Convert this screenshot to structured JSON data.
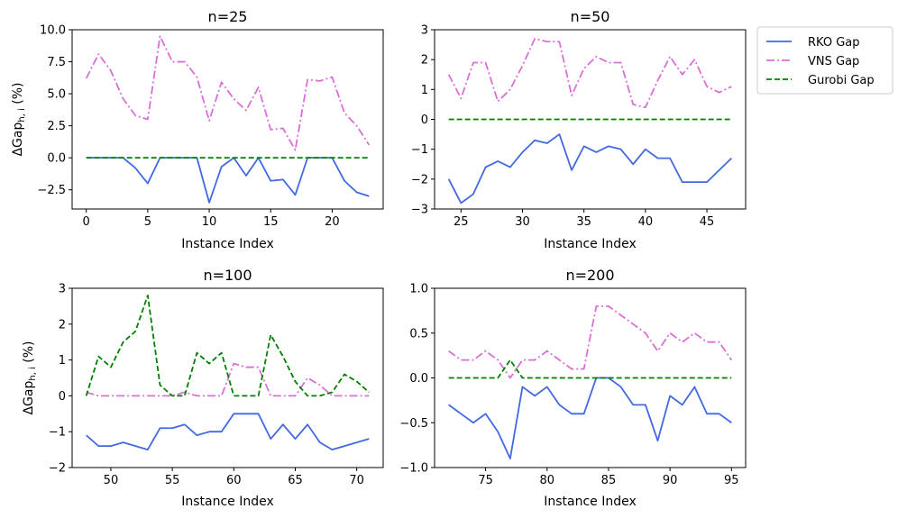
{
  "chart_data": [
    {
      "type": "line",
      "title": "n=25",
      "xlabel": "Instance Index",
      "ylabel": "ΔGap",
      "ylabel_sub": "h, i",
      "ylabel_suffix": " (%)",
      "xlim": [
        -1.15,
        24.15
      ],
      "ylim": [
        -4.0,
        10.0
      ],
      "xticks": [
        0,
        5,
        10,
        15,
        20
      ],
      "yticks": [
        -2.5,
        0.0,
        2.5,
        5.0,
        7.5,
        10.0
      ],
      "ytick_labels": [
        "−2.5",
        "0.0",
        "2.5",
        "5.0",
        "7.5",
        "10.0"
      ],
      "x": [
        0,
        1,
        2,
        3,
        4,
        5,
        6,
        7,
        8,
        9,
        10,
        11,
        12,
        13,
        14,
        15,
        16,
        17,
        18,
        19,
        20,
        21,
        22,
        23
      ],
      "series": [
        {
          "name": "RKO Gap",
          "values": [
            0,
            0,
            0,
            0,
            -0.8,
            -2.0,
            0,
            0,
            0,
            0,
            -3.5,
            -0.7,
            0,
            -1.4,
            0,
            -1.8,
            -1.7,
            -2.9,
            0,
            0,
            0,
            -1.8,
            -2.7,
            -3.0
          ]
        },
        {
          "name": "VNS Gap",
          "values": [
            6.2,
            8.1,
            6.8,
            4.6,
            3.3,
            3.0,
            9.5,
            7.5,
            7.5,
            6.3,
            2.9,
            5.9,
            4.6,
            3.7,
            5.5,
            2.2,
            2.3,
            0.6,
            6.1,
            6.0,
            6.3,
            3.5,
            2.5,
            1.0
          ]
        },
        {
          "name": "Gurobi Gap",
          "values": [
            0,
            0,
            0,
            0,
            0,
            0,
            0,
            0,
            0,
            0,
            0,
            0,
            0,
            0,
            0,
            0,
            0,
            0,
            0,
            0,
            0,
            0,
            0,
            0
          ]
        }
      ]
    },
    {
      "type": "line",
      "title": "n=50",
      "xlabel": "Instance Index",
      "ylabel": "",
      "xlim": [
        22.85,
        48.15
      ],
      "ylim": [
        -3.0,
        3.0
      ],
      "xticks": [
        25,
        30,
        35,
        40,
        45
      ],
      "yticks": [
        -3,
        -2,
        -1,
        0,
        1,
        2,
        3
      ],
      "ytick_labels": [
        "−3",
        "−2",
        "−1",
        "0",
        "1",
        "2",
        "3"
      ],
      "x": [
        24,
        25,
        26,
        27,
        28,
        29,
        30,
        31,
        32,
        33,
        34,
        35,
        36,
        37,
        38,
        39,
        40,
        41,
        42,
        43,
        44,
        45,
        46,
        47
      ],
      "series": [
        {
          "name": "RKO Gap",
          "values": [
            -2.0,
            -2.8,
            -2.5,
            -1.6,
            -1.4,
            -1.6,
            -1.1,
            -0.7,
            -0.8,
            -0.5,
            -1.7,
            -0.9,
            -1.1,
            -0.9,
            -1.0,
            -1.5,
            -1.0,
            -1.3,
            -1.3,
            -2.1,
            -2.1,
            -2.1,
            -1.7,
            -1.3
          ]
        },
        {
          "name": "VNS Gap",
          "values": [
            1.5,
            0.7,
            1.9,
            1.9,
            0.6,
            1.0,
            1.8,
            2.7,
            2.6,
            2.6,
            0.8,
            1.7,
            2.1,
            1.9,
            1.9,
            0.5,
            0.4,
            1.3,
            2.1,
            1.5,
            2.0,
            1.1,
            0.9,
            1.1
          ]
        },
        {
          "name": "Gurobi Gap",
          "values": [
            0,
            0,
            0,
            0,
            0,
            0,
            0,
            0,
            0,
            0,
            0,
            0,
            0,
            0,
            0,
            0,
            0,
            0,
            0,
            0,
            0,
            0,
            0,
            0
          ]
        }
      ]
    },
    {
      "type": "line",
      "title": "n=100",
      "xlabel": "Instance Index",
      "ylabel": "ΔGap",
      "ylabel_sub": "h, i",
      "ylabel_suffix": " (%)",
      "xlim": [
        46.85,
        72.15
      ],
      "ylim": [
        -2.0,
        3.0
      ],
      "xticks": [
        50,
        55,
        60,
        65,
        70
      ],
      "yticks": [
        -2,
        -1,
        0,
        1,
        2,
        3
      ],
      "ytick_labels": [
        "−2",
        "−1",
        "0",
        "1",
        "2",
        "3"
      ],
      "x": [
        48,
        49,
        50,
        51,
        52,
        53,
        54,
        55,
        56,
        57,
        58,
        59,
        60,
        61,
        62,
        63,
        64,
        65,
        66,
        67,
        68,
        69,
        70,
        71
      ],
      "series": [
        {
          "name": "RKO Gap",
          "values": [
            -1.1,
            -1.4,
            -1.4,
            -1.3,
            -1.4,
            -1.5,
            -0.9,
            -0.9,
            -0.8,
            -1.1,
            -1.0,
            -1.0,
            -0.5,
            -0.5,
            -0.5,
            -1.2,
            -0.8,
            -1.2,
            -0.8,
            -1.3,
            -1.5,
            -1.4,
            -1.3,
            -1.2
          ]
        },
        {
          "name": "VNS Gap",
          "values": [
            0.1,
            0,
            0,
            0,
            0,
            0,
            0,
            0,
            0.1,
            0,
            0,
            0,
            0.9,
            0.8,
            0.8,
            0,
            0,
            0,
            0.5,
            0.3,
            0,
            0,
            0,
            0
          ]
        },
        {
          "name": "Gurobi Gap",
          "values": [
            0,
            1.1,
            0.8,
            1.5,
            1.8,
            2.8,
            0.3,
            0,
            0,
            1.2,
            0.9,
            1.2,
            0,
            0,
            0,
            1.7,
            1.1,
            0.4,
            0,
            0,
            0.1,
            0.6,
            0.4,
            0.1
          ]
        }
      ]
    },
    {
      "type": "line",
      "title": "n=200",
      "xlabel": "Instance Index",
      "ylabel": "",
      "xlim": [
        70.85,
        96.15
      ],
      "ylim": [
        -1.0,
        1.0
      ],
      "xticks": [
        75,
        80,
        85,
        90,
        95
      ],
      "yticks": [
        -1.0,
        -0.5,
        0.0,
        0.5,
        1.0
      ],
      "ytick_labels": [
        "−1.0",
        "−0.5",
        "0.0",
        "0.5",
        "1.0"
      ],
      "x": [
        72,
        73,
        74,
        75,
        76,
        77,
        78,
        79,
        80,
        81,
        82,
        83,
        84,
        85,
        86,
        87,
        88,
        89,
        90,
        91,
        92,
        93,
        94,
        95
      ],
      "series": [
        {
          "name": "RKO Gap",
          "values": [
            -0.3,
            -0.4,
            -0.5,
            -0.4,
            -0.6,
            -0.9,
            -0.1,
            -0.2,
            -0.1,
            -0.3,
            -0.4,
            -0.4,
            0,
            0,
            -0.1,
            -0.3,
            -0.3,
            -0.7,
            -0.2,
            -0.3,
            -0.1,
            -0.4,
            -0.4,
            -0.5
          ]
        },
        {
          "name": "VNS Gap",
          "values": [
            0.3,
            0.2,
            0.2,
            0.3,
            0.2,
            0,
            0.2,
            0.2,
            0.3,
            0.2,
            0.1,
            0.1,
            0.8,
            0.8,
            0.7,
            0.6,
            0.5,
            0.3,
            0.5,
            0.4,
            0.5,
            0.4,
            0.4,
            0.2
          ]
        },
        {
          "name": "Gurobi Gap",
          "values": [
            0,
            0,
            0,
            0,
            0,
            0.2,
            0,
            0,
            0,
            0,
            0,
            0,
            0,
            0,
            0,
            0,
            0,
            0,
            0,
            0,
            0,
            0,
            0,
            0
          ]
        }
      ]
    }
  ],
  "legend": {
    "position": "upper-right-outside",
    "entries": [
      {
        "name": "RKO Gap",
        "color": "#4169e1",
        "style": "solid"
      },
      {
        "name": "VNS Gap",
        "color": "#da70d6",
        "style": "dashdot"
      },
      {
        "name": "Gurobi Gap",
        "color": "#008000",
        "style": "dashed"
      }
    ]
  }
}
